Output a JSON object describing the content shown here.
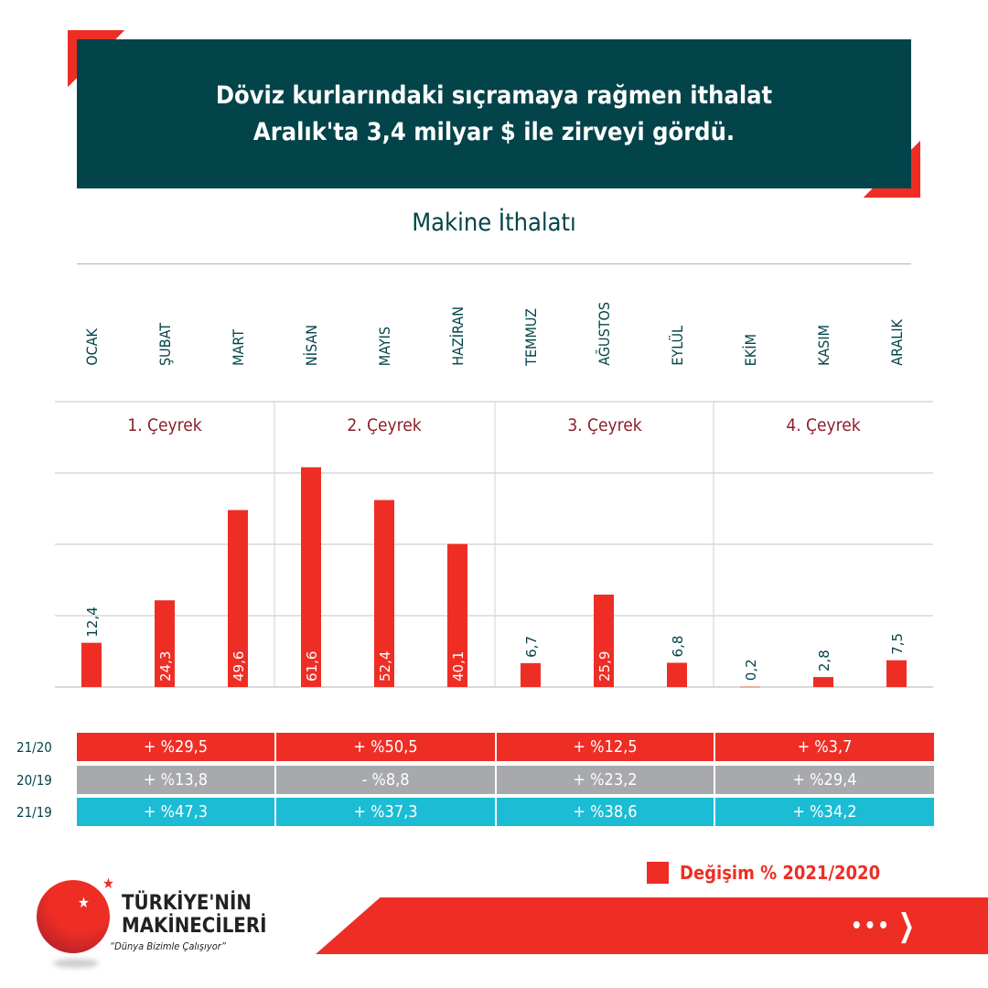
{
  "header": {
    "line1": "Döviz kurlarındaki sıçramaya rağmen ithalat",
    "line2": "Aralık'ta 3,4 milyar $ ile zirveyi gördü."
  },
  "chart_data": {
    "type": "bar",
    "title": "Makine İthalatı",
    "categories": [
      "OCAK",
      "ŞUBAT",
      "MART",
      "NİSAN",
      "MAYIS",
      "HAZİRAN",
      "TEMMUZ",
      "AĞUSTOS",
      "EYLÜL",
      "EKİM",
      "KASIM",
      "ARALIK"
    ],
    "values": [
      12.4,
      24.3,
      49.6,
      61.6,
      52.4,
      40.1,
      6.7,
      25.9,
      6.8,
      0.2,
      2.8,
      7.5
    ],
    "value_labels": [
      "12,4",
      "24,3",
      "49,6",
      "61,6",
      "52,4",
      "40,1",
      "6,7",
      "25,9",
      "6,8",
      "0,2",
      "2,8",
      "7,5"
    ],
    "quarters": [
      "1. Çeyrek",
      "2. Çeyrek",
      "3. Çeyrek",
      "4. Çeyrek"
    ],
    "ylim": [
      0,
      80
    ],
    "grid": true,
    "legend": {
      "label": "Değişim % 2021/2020",
      "position": "bottom-right"
    },
    "colors": {
      "bar": "#ee2e24",
      "label_out": "#03444a"
    }
  },
  "table": {
    "rows": [
      {
        "label": "21/20",
        "color": "#ee2e24",
        "values": [
          "+ %29,5",
          "+ %50,5",
          "+ %12,5",
          "+ %3,7"
        ]
      },
      {
        "label": "20/19",
        "color": "#a7a9ac",
        "values": [
          "+ %13,8",
          "- %8,8",
          "+ %23,2",
          "+ %29,4"
        ]
      },
      {
        "label": "21/19",
        "color": "#1bbcd4",
        "values": [
          "+ %47,3",
          "+ %37,3",
          "+ %38,6",
          "+ %34,2"
        ]
      }
    ]
  },
  "logo": {
    "line1": "TÜRKİYE'NİN",
    "line2": "MAKİNECİLERİ",
    "slogan": "“Dünya Bizimle Çalışıyor”"
  },
  "footer": {
    "next_icon": "dots-chevron-right-icon"
  }
}
